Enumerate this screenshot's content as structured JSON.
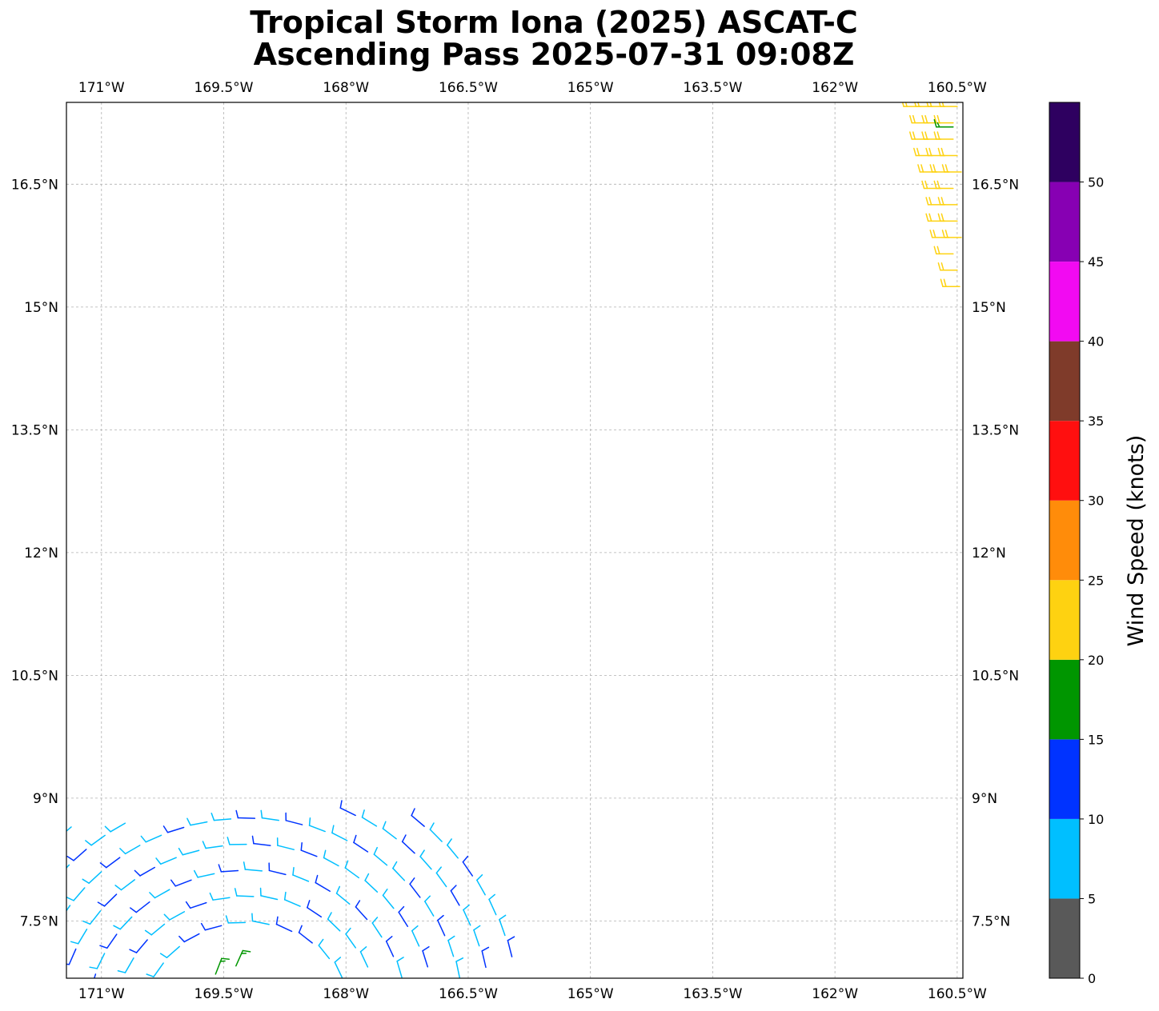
{
  "title": {
    "line1": "Tropical Storm Iona (2025) ASCAT-C",
    "line2": "Ascending Pass 2025-07-31 09:08Z"
  },
  "map": {
    "lon_range": [
      -171.43,
      -160.43
    ],
    "lat_range": [
      6.8,
      17.5
    ],
    "lon_ticks": [
      {
        "value": -171.0,
        "label": "171°W"
      },
      {
        "value": -169.5,
        "label": "169.5°W"
      },
      {
        "value": -168.0,
        "label": "168°W"
      },
      {
        "value": -166.5,
        "label": "166.5°W"
      },
      {
        "value": -165.0,
        "label": "165°W"
      },
      {
        "value": -163.5,
        "label": "163.5°W"
      },
      {
        "value": -162.0,
        "label": "162°W"
      },
      {
        "value": -160.5,
        "label": "160.5°W"
      }
    ],
    "lat_ticks": [
      {
        "value": 16.5,
        "label": "16.5°N"
      },
      {
        "value": 15.0,
        "label": "15°N"
      },
      {
        "value": 13.5,
        "label": "13.5°N"
      },
      {
        "value": 12.0,
        "label": "12°N"
      },
      {
        "value": 10.5,
        "label": "10.5°N"
      },
      {
        "value": 9.0,
        "label": "9°N"
      },
      {
        "value": 7.5,
        "label": "7.5°N"
      }
    ],
    "gridlines": true
  },
  "colorbar": {
    "label": "Wind Speed (knots)",
    "ticks": [
      "0",
      "5",
      "10",
      "15",
      "20",
      "25",
      "30",
      "35",
      "40",
      "45",
      "50"
    ],
    "bins": [
      {
        "min": 0,
        "max": 5,
        "color": "#595959"
      },
      {
        "min": 5,
        "max": 10,
        "color": "#00bfff"
      },
      {
        "min": 10,
        "max": 15,
        "color": "#0033ff"
      },
      {
        "min": 15,
        "max": 20,
        "color": "#009600"
      },
      {
        "min": 20,
        "max": 25,
        "color": "#fed211"
      },
      {
        "min": 25,
        "max": 30,
        "color": "#ff8c0a"
      },
      {
        "min": 30,
        "max": 35,
        "color": "#ff0f0f"
      },
      {
        "min": 35,
        "max": 40,
        "color": "#7f3b2a"
      },
      {
        "min": 40,
        "max": 45,
        "color": "#f20af2"
      },
      {
        "min": 45,
        "max": 50,
        "color": "#8700b3"
      },
      {
        "min": 50,
        "max": 55,
        "color": "#2e0060"
      }
    ]
  },
  "swaths": {
    "northeast": {
      "speed_knots": 22,
      "rows": [
        {
          "lat": 17.45,
          "lon_start": -160.95,
          "lon_end": -160.43
        },
        {
          "lat": 17.25,
          "lon_start": -160.85,
          "lon_end": -160.43
        },
        {
          "lat": 17.05,
          "lon_start": -160.85,
          "lon_end": -160.43
        },
        {
          "lat": 16.85,
          "lon_start": -160.8,
          "lon_end": -160.43
        },
        {
          "lat": 16.65,
          "lon_start": -160.75,
          "lon_end": -160.43
        },
        {
          "lat": 16.45,
          "lon_start": -160.7,
          "lon_end": -160.43
        },
        {
          "lat": 16.25,
          "lon_start": -160.65,
          "lon_end": -160.43
        },
        {
          "lat": 16.05,
          "lon_start": -160.65,
          "lon_end": -160.43
        },
        {
          "lat": 15.85,
          "lon_start": -160.6,
          "lon_end": -160.43
        },
        {
          "lat": 15.65,
          "lon_start": -160.55,
          "lon_end": -160.43
        },
        {
          "lat": 15.45,
          "lon_start": -160.5,
          "lon_end": -160.43
        },
        {
          "lat": 15.25,
          "lon_start": -160.47,
          "lon_end": -160.43
        }
      ]
    },
    "southwest": {
      "center_lon": -169.2,
      "center_lat": 6.3,
      "lon_min": -171.4,
      "lat_min": 6.8
    }
  }
}
